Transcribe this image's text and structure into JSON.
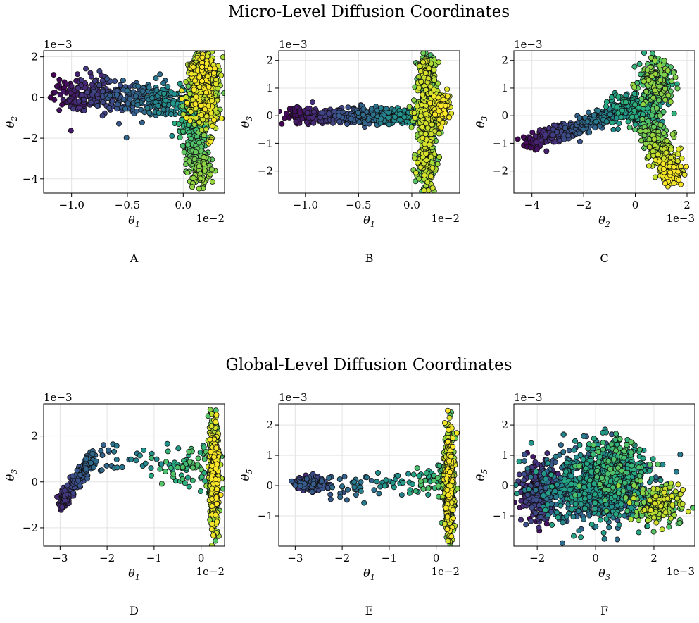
{
  "titles": {
    "top": "Micro-Level Diffusion Coordinates",
    "bottom": "Global-Level Diffusion Coordinates"
  },
  "chart_data": [
    {
      "panel": "A",
      "type": "scatter",
      "xlabel": "θ",
      "xsub": "1",
      "ylabel": "θ",
      "ysub": "2",
      "x_scale_label": "1e−2",
      "y_scale_label": "1e−3",
      "x_scale": 0.01,
      "y_scale": 0.001,
      "xlim": [
        -1.25,
        0.37
      ],
      "ylim": [
        -4.7,
        2.3
      ],
      "xticks": [
        -1.0,
        -0.5,
        0.0
      ],
      "xtick_labels": [
        "−1.0",
        "−0.5",
        "0.0"
      ],
      "yticks": [
        -4,
        -2,
        0,
        2
      ],
      "ytick_labels": [
        "−4",
        "−2",
        "0",
        "2"
      ],
      "grid": true,
      "colormap": "viridis",
      "clusters": [
        {
          "shape": "line",
          "from": [
            -1.12,
            0.25
          ],
          "to": [
            0.1,
            -0.3
          ],
          "spread": [
            0.08,
            0.45
          ],
          "c": [
            0.0,
            0.55
          ],
          "n": 450
        },
        {
          "shape": "blob",
          "center": [
            0.18,
            0.2
          ],
          "spread": [
            0.07,
            0.9
          ],
          "c": [
            0.7,
            1.0
          ],
          "n": 500
        },
        {
          "shape": "line",
          "from": [
            0.05,
            -0.8
          ],
          "to": [
            0.17,
            -4.2
          ],
          "spread": [
            0.05,
            0.25
          ],
          "c": [
            0.6,
            0.85
          ],
          "n": 300
        },
        {
          "shape": "blob",
          "center": [
            0.17,
            1.4
          ],
          "spread": [
            0.06,
            0.35
          ],
          "c": [
            0.85,
            1.0
          ],
          "n": 150
        }
      ]
    },
    {
      "panel": "B",
      "type": "scatter",
      "xlabel": "θ",
      "xsub": "1",
      "ylabel": "θ",
      "ysub": "3",
      "x_scale_label": "1e−2",
      "y_scale_label": "1e−3",
      "x_scale": 0.01,
      "y_scale": 0.001,
      "xlim": [
        -1.25,
        0.45
      ],
      "ylim": [
        -2.8,
        2.35
      ],
      "xticks": [
        -1.0,
        -0.5,
        0.0
      ],
      "xtick_labels": [
        "−1.0",
        "−0.5",
        "0.0"
      ],
      "yticks": [
        -2,
        -1,
        0,
        1,
        2
      ],
      "ytick_labels": [
        "−2",
        "−1",
        "0",
        "1",
        "2"
      ],
      "grid": true,
      "colormap": "viridis",
      "clusters": [
        {
          "shape": "line",
          "from": [
            -1.15,
            0.0
          ],
          "to": [
            0.1,
            0.0
          ],
          "spread": [
            0.06,
            0.15
          ],
          "c": [
            0.0,
            0.55
          ],
          "n": 450
        },
        {
          "shape": "blob",
          "center": [
            0.15,
            0.0
          ],
          "spread": [
            0.06,
            0.35
          ],
          "c": [
            0.6,
            0.95
          ],
          "n": 350
        },
        {
          "shape": "blob",
          "center": [
            0.14,
            -1.5
          ],
          "spread": [
            0.04,
            0.55
          ],
          "c": [
            0.7,
            0.95
          ],
          "n": 250
        },
        {
          "shape": "blob",
          "center": [
            0.14,
            1.4
          ],
          "spread": [
            0.04,
            0.45
          ],
          "c": [
            0.7,
            0.95
          ],
          "n": 200
        },
        {
          "shape": "blob",
          "center": [
            0.27,
            0.3
          ],
          "spread": [
            0.04,
            0.3
          ],
          "c": [
            0.9,
            1.0
          ],
          "n": 120
        }
      ]
    },
    {
      "panel": "C",
      "type": "scatter",
      "xlabel": "θ",
      "xsub": "2",
      "ylabel": "θ",
      "ysub": "3",
      "x_scale_label": "1e−3",
      "y_scale_label": "1e−3",
      "x_scale": 0.001,
      "y_scale": 0.001,
      "xlim": [
        -4.7,
        2.3
      ],
      "ylim": [
        -2.8,
        2.35
      ],
      "xticks": [
        -4,
        -2,
        0,
        2
      ],
      "xtick_labels": [
        "−4",
        "−2",
        "0",
        "2"
      ],
      "yticks": [
        -2,
        -1,
        0,
        1,
        2
      ],
      "ytick_labels": [
        "−2",
        "−1",
        "0",
        "1",
        "2"
      ],
      "grid": true,
      "colormap": "viridis",
      "clusters": [
        {
          "shape": "line",
          "from": [
            -4.2,
            -1.0
          ],
          "to": [
            -0.5,
            0.2
          ],
          "spread": [
            0.2,
            0.15
          ],
          "c": [
            0.0,
            0.5
          ],
          "n": 380
        },
        {
          "shape": "blob",
          "center": [
            0.0,
            0.3
          ],
          "spread": [
            0.5,
            0.3
          ],
          "c": [
            0.45,
            0.65
          ],
          "n": 200
        },
        {
          "shape": "blob",
          "center": [
            0.8,
            1.2
          ],
          "spread": [
            0.3,
            0.45
          ],
          "c": [
            0.6,
            0.85
          ],
          "n": 250
        },
        {
          "shape": "line",
          "from": [
            0.5,
            -0.3
          ],
          "to": [
            1.5,
            -2.2
          ],
          "spread": [
            0.25,
            0.25
          ],
          "c": [
            0.7,
            1.0
          ],
          "n": 350
        }
      ]
    },
    {
      "panel": "D",
      "type": "scatter",
      "xlabel": "θ",
      "xsub": "1",
      "ylabel": "θ",
      "ysub": "3",
      "x_scale_label": "1e−2",
      "y_scale_label": "1e−3",
      "x_scale": 0.01,
      "y_scale": 0.001,
      "xlim": [
        -3.35,
        0.5
      ],
      "ylim": [
        -2.8,
        3.4
      ],
      "xticks": [
        -3,
        -2,
        -1,
        0
      ],
      "xtick_labels": [
        "−3",
        "−2",
        "−1",
        "0"
      ],
      "yticks": [
        -2,
        0,
        2
      ],
      "ytick_labels": [
        "−2",
        "0",
        "2"
      ],
      "grid": true,
      "colormap": "viridis",
      "clusters": [
        {
          "shape": "line",
          "from": [
            -3.0,
            -1.0
          ],
          "to": [
            -2.3,
            1.1
          ],
          "spread": [
            0.05,
            0.15
          ],
          "c": [
            0.1,
            0.35
          ],
          "n": 260
        },
        {
          "shape": "line",
          "from": [
            -2.3,
            1.1
          ],
          "to": [
            -0.6,
            0.9
          ],
          "spread": [
            0.2,
            0.3
          ],
          "c": [
            0.3,
            0.55
          ],
          "n": 40
        },
        {
          "shape": "blob",
          "center": [
            -0.3,
            0.6
          ],
          "spread": [
            0.25,
            0.5
          ],
          "c": [
            0.55,
            0.75
          ],
          "n": 60
        },
        {
          "shape": "blob",
          "center": [
            0.28,
            0.3
          ],
          "spread": [
            0.05,
            1.1
          ],
          "c": [
            0.7,
            1.0
          ],
          "n": 700
        }
      ]
    },
    {
      "panel": "E",
      "type": "scatter",
      "xlabel": "θ",
      "xsub": "1",
      "ylabel": "θ",
      "ysub": "5",
      "x_scale_label": "1e−2",
      "y_scale_label": "1e−3",
      "x_scale": 0.01,
      "y_scale": 0.001,
      "xlim": [
        -3.35,
        0.5
      ],
      "ylim": [
        -2.0,
        2.7
      ],
      "xticks": [
        -3,
        -2,
        -1,
        0
      ],
      "xtick_labels": [
        "−3",
        "−2",
        "−1",
        "0"
      ],
      "yticks": [
        -1,
        0,
        1,
        2
      ],
      "ytick_labels": [
        "−1",
        "0",
        "1",
        "2"
      ],
      "grid": true,
      "colormap": "viridis",
      "clusters": [
        {
          "shape": "blob",
          "center": [
            -2.65,
            0.05
          ],
          "spread": [
            0.15,
            0.1
          ],
          "c": [
            0.1,
            0.3
          ],
          "n": 200
        },
        {
          "shape": "line",
          "from": [
            -2.4,
            -0.1
          ],
          "to": [
            -0.6,
            0.0
          ],
          "spread": [
            0.25,
            0.25
          ],
          "c": [
            0.25,
            0.55
          ],
          "n": 60
        },
        {
          "shape": "blob",
          "center": [
            -0.1,
            0.1
          ],
          "spread": [
            0.2,
            0.3
          ],
          "c": [
            0.55,
            0.75
          ],
          "n": 60
        },
        {
          "shape": "blob",
          "center": [
            0.28,
            0.1
          ],
          "spread": [
            0.05,
            0.85
          ],
          "c": [
            0.7,
            1.0
          ],
          "n": 650
        }
      ]
    },
    {
      "panel": "F",
      "type": "scatter",
      "xlabel": "θ",
      "xsub": "3",
      "ylabel": "θ",
      "ysub": "5",
      "x_scale_label": "1e−3",
      "y_scale_label": "1e−3",
      "x_scale": 0.001,
      "y_scale": 0.001,
      "xlim": [
        -2.8,
        3.4
      ],
      "ylim": [
        -2.0,
        2.7
      ],
      "xticks": [
        -2,
        0,
        2
      ],
      "xtick_labels": [
        "−2",
        "0",
        "2"
      ],
      "yticks": [
        -1,
        0,
        1,
        2
      ],
      "ytick_labels": [
        "−1",
        "0",
        "1",
        "2"
      ],
      "grid": true,
      "colormap": "viridis",
      "clusters": [
        {
          "shape": "blob",
          "center": [
            -1.9,
            -0.2
          ],
          "spread": [
            0.3,
            0.45
          ],
          "c": [
            0.0,
            0.25
          ],
          "n": 350
        },
        {
          "shape": "blob",
          "center": [
            0.0,
            0.0
          ],
          "spread": [
            0.9,
            0.6
          ],
          "c": [
            0.25,
            0.6
          ],
          "n": 900
        },
        {
          "shape": "blob",
          "center": [
            0.7,
            0.6
          ],
          "spread": [
            0.5,
            0.5
          ],
          "c": [
            0.5,
            0.75
          ],
          "n": 250
        },
        {
          "shape": "blob",
          "center": [
            2.2,
            -0.6
          ],
          "spread": [
            0.5,
            0.3
          ],
          "c": [
            0.7,
            0.95
          ],
          "n": 220
        }
      ]
    }
  ]
}
